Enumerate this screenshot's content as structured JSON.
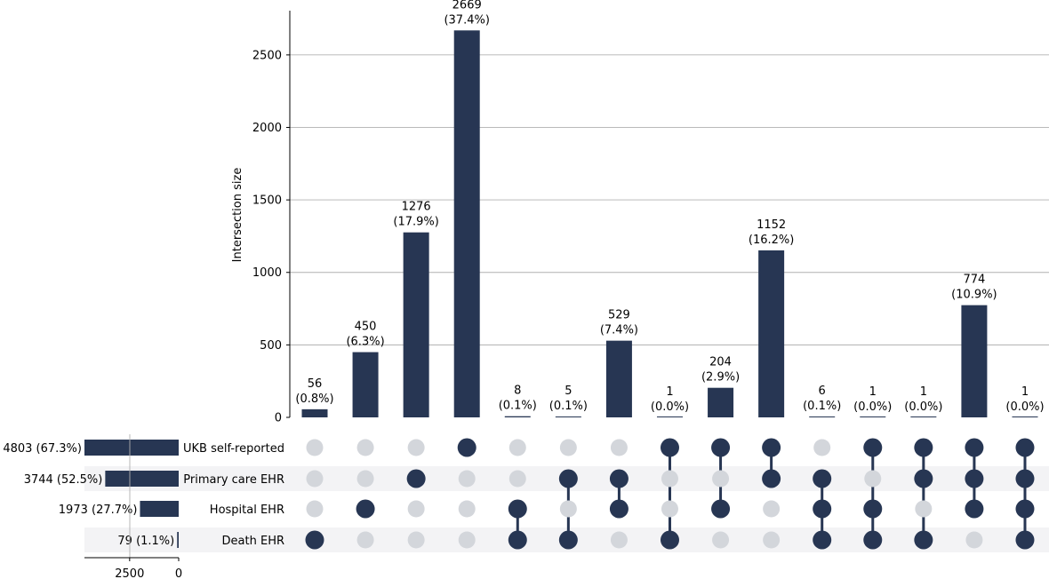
{
  "chart_data": {
    "type": "upset",
    "ylabel": "Intersection size",
    "ylim": [
      0,
      2800
    ],
    "yticks": [
      0,
      500,
      1000,
      1500,
      2000,
      2500
    ],
    "grid": true,
    "colors": {
      "bar": "#273653",
      "dot_active": "#273653",
      "dot_inactive": "#d3d6db",
      "stripe": "#f3f3f5",
      "grid": "#b0b0b0"
    },
    "sets": [
      {
        "name": "UKB self-reported",
        "size": 4803,
        "label": "4803 (67.3%)"
      },
      {
        "name": "Primary care EHR",
        "size": 3744,
        "label": "3744 (52.5%)"
      },
      {
        "name": "Hospital EHR",
        "size": 1973,
        "label": "1973 (27.7%)"
      },
      {
        "name": "Death EHR",
        "size": 79,
        "label": "79 (1.1%)"
      }
    ],
    "set_size_axis": {
      "ticks": [
        2500,
        0
      ],
      "max": 4803
    },
    "intersections": [
      {
        "value": 56,
        "count": "56",
        "pct": "(0.8%)",
        "members": [
          0,
          0,
          0,
          1
        ]
      },
      {
        "value": 450,
        "count": "450",
        "pct": "(6.3%)",
        "members": [
          0,
          0,
          1,
          0
        ]
      },
      {
        "value": 1276,
        "count": "1276",
        "pct": "(17.9%)",
        "members": [
          0,
          1,
          0,
          0
        ]
      },
      {
        "value": 2669,
        "count": "2669",
        "pct": "(37.4%)",
        "members": [
          1,
          0,
          0,
          0
        ]
      },
      {
        "value": 8,
        "count": "8",
        "pct": "(0.1%)",
        "members": [
          0,
          0,
          1,
          1
        ]
      },
      {
        "value": 5,
        "count": "5",
        "pct": "(0.1%)",
        "members": [
          0,
          1,
          0,
          1
        ]
      },
      {
        "value": 529,
        "count": "529",
        "pct": "(7.4%)",
        "members": [
          0,
          1,
          1,
          0
        ]
      },
      {
        "value": 1,
        "count": "1",
        "pct": "(0.0%)",
        "members": [
          1,
          0,
          0,
          1
        ]
      },
      {
        "value": 204,
        "count": "204",
        "pct": "(2.9%)",
        "members": [
          1,
          0,
          1,
          0
        ]
      },
      {
        "value": 1152,
        "count": "1152",
        "pct": "(16.2%)",
        "members": [
          1,
          1,
          0,
          0
        ]
      },
      {
        "value": 6,
        "count": "6",
        "pct": "(0.1%)",
        "members": [
          0,
          1,
          1,
          1
        ]
      },
      {
        "value": 1,
        "count": "1",
        "pct": "(0.0%)",
        "members": [
          1,
          0,
          1,
          1
        ]
      },
      {
        "value": 1,
        "count": "1",
        "pct": "(0.0%)",
        "members": [
          1,
          1,
          0,
          1
        ]
      },
      {
        "value": 774,
        "count": "774",
        "pct": "(10.9%)",
        "members": [
          1,
          1,
          1,
          0
        ]
      },
      {
        "value": 1,
        "count": "1",
        "pct": "(0.0%)",
        "members": [
          1,
          1,
          1,
          1
        ]
      }
    ]
  }
}
